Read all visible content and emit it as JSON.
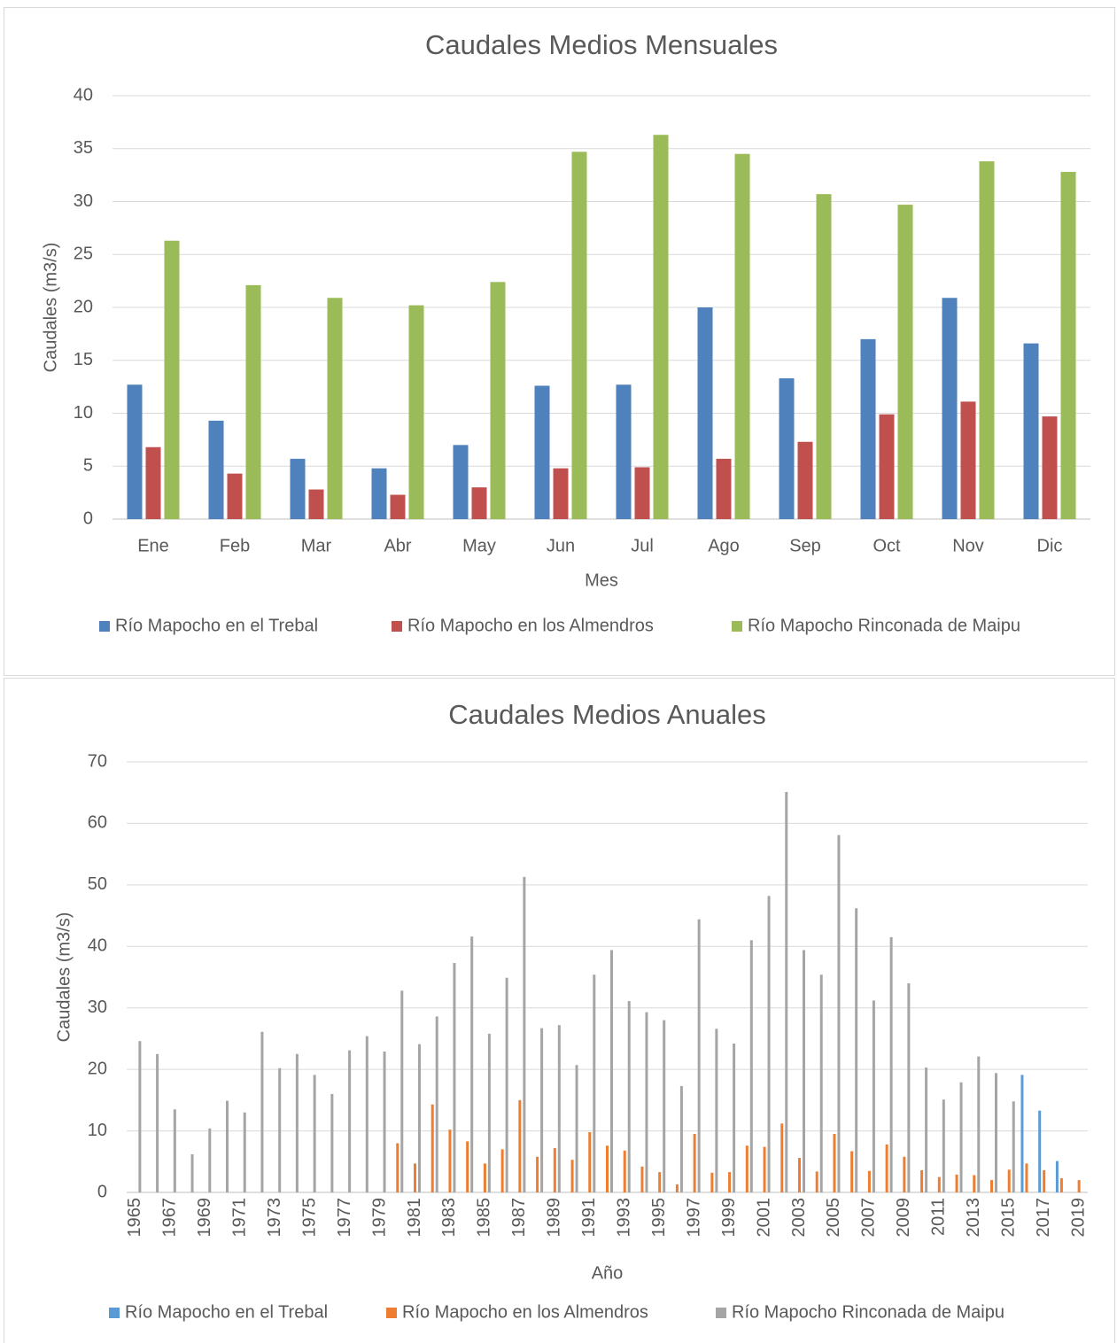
{
  "chart_data": [
    {
      "type": "bar",
      "title": "Caudales Medios Mensuales",
      "x_label": "Mes",
      "y_label": "Caudales (m3/s)",
      "categories": [
        "Ene",
        "Feb",
        "Mar",
        "Abr",
        "May",
        "Jun",
        "Jul",
        "Ago",
        "Sep",
        "Oct",
        "Nov",
        "Dic"
      ],
      "series": [
        {
          "name": "Río Mapocho en el Trebal",
          "color": "#4f81bd",
          "values": [
            12.7,
            9.3,
            5.7,
            4.8,
            7.0,
            12.6,
            12.7,
            20.0,
            13.3,
            17.0,
            20.9,
            16.6
          ]
        },
        {
          "name": "Río Mapocho en los Almendros",
          "color": "#c0504d",
          "values": [
            6.8,
            4.3,
            2.8,
            2.3,
            3.0,
            4.8,
            4.9,
            5.7,
            7.3,
            9.9,
            11.1,
            9.7
          ]
        },
        {
          "name": "Río Mapocho Rinconada de Maipu",
          "color": "#9bbb59",
          "values": [
            26.3,
            22.1,
            20.9,
            20.2,
            22.4,
            34.7,
            36.3,
            34.5,
            30.7,
            29.7,
            33.8,
            32.8
          ]
        }
      ],
      "ylim": [
        0,
        40
      ],
      "yticks": [
        0,
        5,
        10,
        15,
        20,
        25,
        30,
        35,
        40
      ],
      "grid": true,
      "legend": "bottom"
    },
    {
      "type": "bar",
      "title": "Caudales Medios Anuales",
      "x_label": "Año",
      "y_label": "Caudales (m3/s)",
      "categories": [
        "1965",
        null,
        "1967",
        null,
        "1969",
        null,
        "1971",
        null,
        "1973",
        null,
        "1975",
        null,
        "1977",
        null,
        "1979",
        null,
        "1981",
        null,
        "1983",
        null,
        "1985",
        null,
        "1987",
        null,
        "1989",
        null,
        "1991",
        null,
        "1993",
        null,
        "1995",
        null,
        "1997",
        null,
        "1999",
        null,
        "2001",
        null,
        "2003",
        null,
        "2005",
        null,
        "2007",
        null,
        "2009",
        null,
        "2011",
        null,
        "2013",
        null,
        "2015",
        null,
        "2017",
        null,
        "2019"
      ],
      "series": [
        {
          "name": "Río Mapocho en el Trebal",
          "color": "#5b9bd5",
          "values": [
            null,
            null,
            null,
            null,
            null,
            null,
            null,
            null,
            null,
            null,
            null,
            null,
            null,
            null,
            null,
            null,
            null,
            null,
            null,
            null,
            null,
            null,
            null,
            null,
            null,
            null,
            null,
            null,
            null,
            null,
            null,
            null,
            null,
            null,
            null,
            null,
            null,
            null,
            null,
            null,
            null,
            null,
            null,
            null,
            null,
            null,
            null,
            null,
            null,
            null,
            null,
            19.1,
            13.3,
            5.1,
            null
          ]
        },
        {
          "name": "Río Mapocho en los Almendros",
          "color": "#ed7d31",
          "values": [
            null,
            null,
            null,
            null,
            null,
            null,
            null,
            null,
            null,
            null,
            null,
            null,
            null,
            null,
            null,
            8.0,
            4.7,
            14.3,
            10.2,
            8.3,
            4.7,
            7.0,
            15.0,
            5.8,
            7.2,
            5.3,
            9.8,
            7.6,
            6.8,
            4.2,
            3.3,
            1.3,
            9.5,
            3.2,
            3.3,
            7.6,
            7.4,
            11.2,
            5.6,
            3.4,
            9.5,
            6.7,
            3.5,
            7.8,
            5.8,
            3.6,
            2.5,
            2.9,
            2.8,
            2.0,
            3.7,
            4.7,
            3.6,
            2.3,
            2.0
          ]
        },
        {
          "name": "Río Mapocho Rinconada de Maipu",
          "color": "#a5a5a5",
          "values": [
            24.6,
            22.5,
            13.5,
            6.2,
            10.4,
            14.9,
            13.0,
            26.1,
            20.2,
            22.5,
            19.1,
            16.0,
            23.1,
            25.4,
            22.9,
            32.8,
            24.1,
            28.6,
            37.3,
            41.6,
            25.8,
            34.9,
            51.3,
            26.7,
            27.2,
            20.7,
            35.4,
            39.4,
            31.1,
            29.3,
            28.0,
            17.3,
            44.4,
            26.6,
            24.2,
            41.0,
            48.2,
            65.1,
            39.4,
            35.4,
            58.1,
            46.2,
            31.2,
            41.5,
            34.0,
            20.3,
            15.1,
            17.9,
            22.1,
            19.4,
            14.8,
            null,
            null,
            null,
            null
          ]
        }
      ],
      "ylim": [
        0,
        70
      ],
      "yticks": [
        0,
        10,
        20,
        30,
        40,
        50,
        60,
        70
      ],
      "grid": true,
      "legend": "bottom"
    }
  ]
}
